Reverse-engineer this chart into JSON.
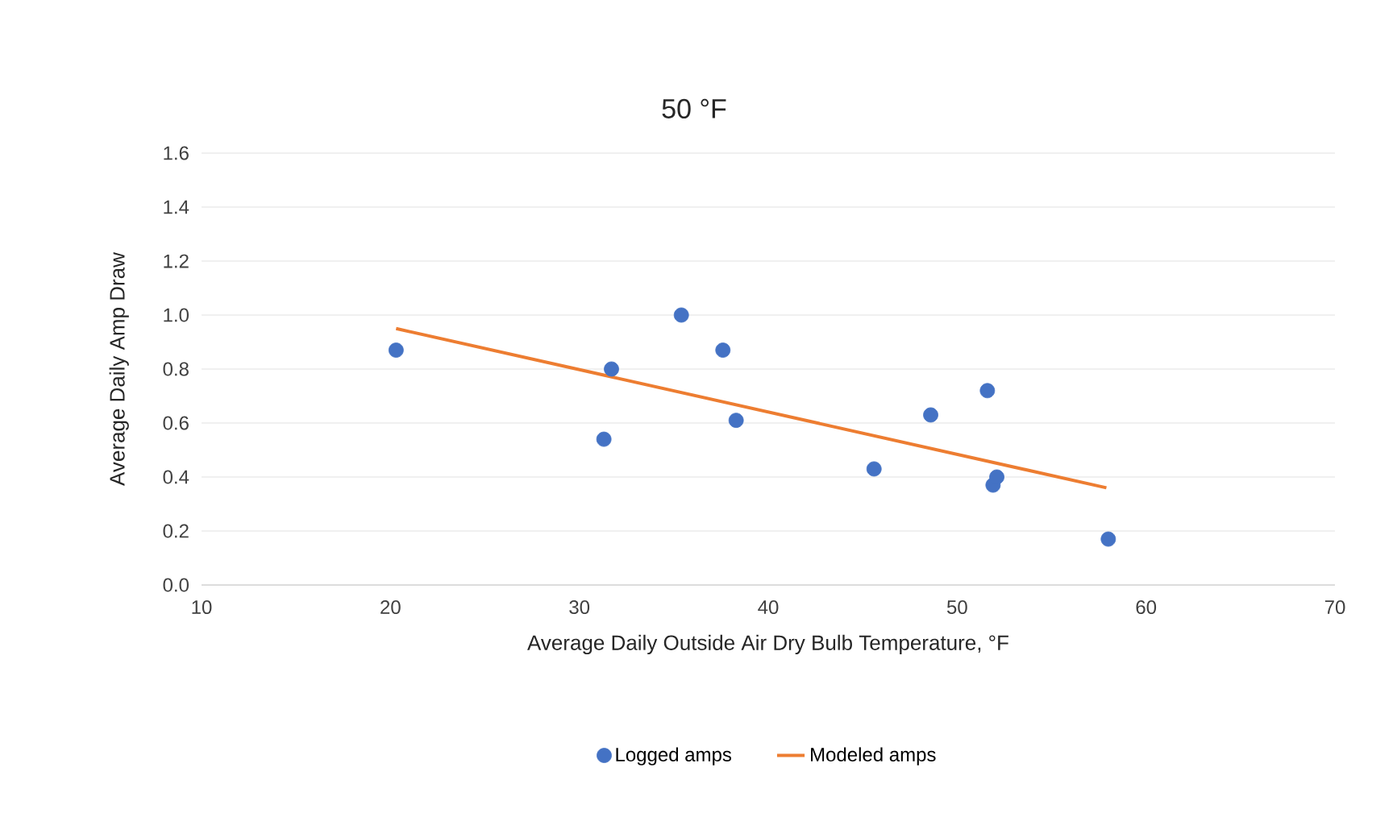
{
  "chart_data": {
    "type": "scatter",
    "title": "50 °F",
    "xlabel": "Average Daily Outside Air Dry Bulb Temperature, °F",
    "ylabel": "Average Daily Amp Draw",
    "xlim": [
      10,
      70
    ],
    "xticks": [
      10,
      20,
      30,
      40,
      50,
      60,
      70
    ],
    "ylim": [
      0,
      1.6
    ],
    "yticks": [
      {
        "value": 0,
        "label": "0.0"
      },
      {
        "value": 0.2,
        "label": "0.2"
      },
      {
        "value": 0.4,
        "label": "0.4"
      },
      {
        "value": 0.6,
        "label": "0.6"
      },
      {
        "value": 0.8,
        "label": "0.8"
      },
      {
        "value": 1.0,
        "label": "1.0"
      },
      {
        "value": 1.2,
        "label": "1.2"
      },
      {
        "value": 1.4,
        "label": "1.4"
      },
      {
        "value": 1.6,
        "label": "1.6"
      }
    ],
    "grid": "y",
    "legend": "bottom",
    "series": [
      {
        "name": "Logged amps",
        "marker": "circle",
        "color": "#4472c4",
        "x": [
          20.3,
          31.3,
          31.7,
          35.4,
          37.6,
          38.3,
          45.6,
          48.6,
          51.6,
          51.9,
          52.1,
          58.0
        ],
        "values": [
          0.87,
          0.54,
          0.8,
          1.0,
          0.87,
          0.61,
          0.43,
          0.63,
          0.72,
          0.37,
          0.4,
          0.17
        ]
      },
      {
        "name": "Modeled amps",
        "type": "line",
        "color": "#ed7d31",
        "x": [
          20.3,
          57.9
        ],
        "values": [
          0.95,
          0.36
        ]
      }
    ]
  }
}
